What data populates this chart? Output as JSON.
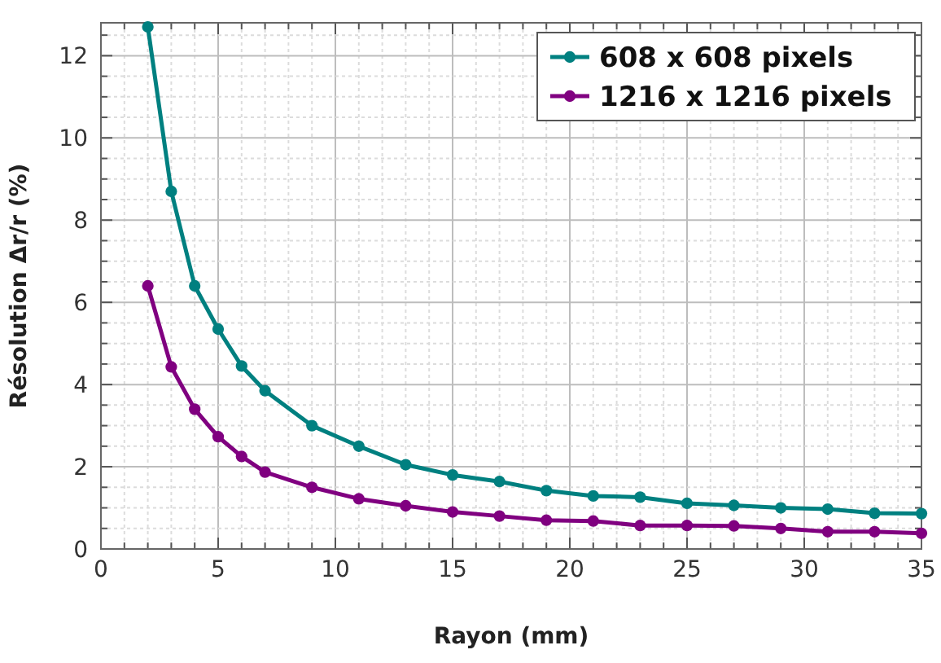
{
  "chart_data": {
    "type": "line",
    "xlabel": "Rayon (mm)",
    "ylabel": "Résolution Δr/r (%)",
    "x": [
      2,
      3,
      4,
      5,
      6,
      7,
      9,
      11,
      13,
      15,
      17,
      19,
      21,
      23,
      25,
      27,
      29,
      31,
      33,
      35
    ],
    "series": [
      {
        "name": "608 x 608 pixels",
        "color": "#008080",
        "values": [
          12.7,
          8.7,
          6.4,
          5.35,
          4.45,
          3.85,
          3.0,
          2.5,
          2.05,
          1.8,
          1.64,
          1.42,
          1.29,
          1.26,
          1.11,
          1.06,
          1.0,
          0.97,
          0.87,
          0.86
        ]
      },
      {
        "name": "1216 x 1216 pixels",
        "color": "#800080",
        "values": [
          6.4,
          4.43,
          3.4,
          2.73,
          2.25,
          1.87,
          1.5,
          1.22,
          1.05,
          0.9,
          0.8,
          0.7,
          0.68,
          0.57,
          0.57,
          0.56,
          0.5,
          0.42,
          0.42,
          0.38
        ]
      }
    ],
    "xlim": [
      0,
      35
    ],
    "ylim": [
      0,
      12.8
    ],
    "xticks": [
      0,
      {
        "value": 1,
        "label": null
      },
      {
        "value": 2,
        "label": null
      },
      {
        "value": 3,
        "label": null
      },
      {
        "value": 4,
        "label": null
      },
      5,
      {
        "value": 6,
        "label": null
      },
      {
        "value": 7,
        "label": null
      },
      {
        "value": 8,
        "label": null
      },
      {
        "value": 9,
        "label": null
      },
      10,
      {
        "value": 11,
        "label": null
      },
      {
        "value": 12,
        "label": null
      },
      {
        "value": 13,
        "label": null
      },
      {
        "value": 14,
        "label": null
      },
      15,
      {
        "value": 16,
        "label": null
      },
      {
        "value": 17,
        "label": null
      },
      {
        "value": 18,
        "label": null
      },
      {
        "value": 19,
        "label": null
      },
      20,
      {
        "value": 21,
        "label": null
      },
      {
        "value": 22,
        "label": null
      },
      {
        "value": 23,
        "label": null
      },
      {
        "value": 24,
        "label": null
      },
      25,
      {
        "value": 26,
        "label": null
      },
      {
        "value": 27,
        "label": null
      },
      {
        "value": 28,
        "label": null
      },
      {
        "value": 29,
        "label": null
      },
      30,
      {
        "value": 31,
        "label": null
      },
      {
        "value": 32,
        "label": null
      },
      {
        "value": 33,
        "label": null
      },
      {
        "value": 34,
        "label": null
      },
      35
    ],
    "yticks": [
      0,
      {
        "value": 0.5,
        "label": null
      },
      {
        "value": 1,
        "label": null
      },
      {
        "value": 1.5,
        "label": null
      },
      2,
      {
        "value": 2.5,
        "label": null
      },
      {
        "value": 3,
        "label": null
      },
      {
        "value": 3.5,
        "label": null
      },
      4,
      {
        "value": 4.5,
        "label": null
      },
      {
        "value": 5,
        "label": null
      },
      {
        "value": 5.5,
        "label": null
      },
      6,
      {
        "value": 6.5,
        "label": null
      },
      {
        "value": 7,
        "label": null
      },
      {
        "value": 7.5,
        "label": null
      },
      8,
      {
        "value": 8.5,
        "label": null
      },
      {
        "value": 9,
        "label": null
      },
      {
        "value": 9.5,
        "label": null
      },
      10,
      {
        "value": 10.5,
        "label": null
      },
      {
        "value": 11,
        "label": null
      },
      {
        "value": 11.5,
        "label": null
      },
      12,
      {
        "value": 12.5,
        "label": null
      }
    ],
    "grid": true,
    "legend": "top right",
    "marker": "circle",
    "line_style": "solid"
  }
}
